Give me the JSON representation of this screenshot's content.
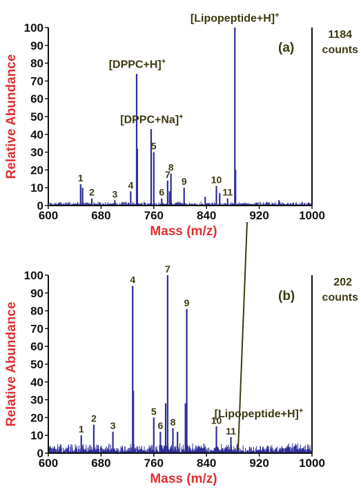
{
  "chart_data": [
    {
      "type": "line",
      "panel_label": "(a)",
      "counts_value": "1184",
      "counts_unit": "counts",
      "xlabel": "Mass (m/z)",
      "ylabel": "Relative Abundance",
      "xlim": [
        600,
        1000
      ],
      "ylim": [
        0,
        100
      ],
      "xticks": [
        600,
        680,
        760,
        840,
        920,
        1000
      ],
      "yticks": [
        0,
        10,
        20,
        30,
        40,
        50,
        60,
        70,
        80,
        90,
        100
      ],
      "peaks": [
        {
          "x": 649,
          "y": 12,
          "label": "1"
        },
        {
          "x": 652,
          "y": 10,
          "label": ""
        },
        {
          "x": 666,
          "y": 4,
          "label": "2"
        },
        {
          "x": 701,
          "y": 3,
          "label": "3"
        },
        {
          "x": 725,
          "y": 8,
          "label": "4"
        },
        {
          "x": 734,
          "y": 74,
          "label": ""
        },
        {
          "x": 735,
          "y": 32,
          "label": ""
        },
        {
          "x": 756,
          "y": 43,
          "label": ""
        },
        {
          "x": 760,
          "y": 30,
          "label": "5"
        },
        {
          "x": 772,
          "y": 4,
          "label": "6"
        },
        {
          "x": 781,
          "y": 14,
          "label": "7"
        },
        {
          "x": 784,
          "y": 8,
          "label": ""
        },
        {
          "x": 786,
          "y": 18,
          "label": "8"
        },
        {
          "x": 806,
          "y": 10,
          "label": "9"
        },
        {
          "x": 838,
          "y": 5,
          "label": ""
        },
        {
          "x": 855,
          "y": 11,
          "label": "10"
        },
        {
          "x": 860,
          "y": 7,
          "label": ""
        },
        {
          "x": 872,
          "y": 4,
          "label": "11"
        },
        {
          "x": 883,
          "y": 100,
          "label": ""
        },
        {
          "x": 884,
          "y": 20,
          "label": ""
        },
        {
          "x": 950,
          "y": 3,
          "label": ""
        }
      ],
      "annotations": [
        {
          "base": "[DPPC+H]",
          "sup": "+",
          "x": 735,
          "y": 75
        },
        {
          "base": "[DPPC+Na]",
          "sup": "+",
          "x": 757,
          "y": 44
        },
        {
          "base": "[Lipopeptide+H]",
          "sup": "+",
          "x": 883,
          "y": 101
        }
      ],
      "noise_level": 2.5,
      "line_color": "#2e2e9a"
    },
    {
      "type": "line",
      "panel_label": "(b)",
      "counts_value": "202",
      "counts_unit": "counts",
      "xlabel": "Mass (m/z)",
      "ylabel": "Relative Abundance",
      "xlim": [
        600,
        1000
      ],
      "ylim": [
        0,
        100
      ],
      "xticks": [
        600,
        680,
        760,
        840,
        920,
        1000
      ],
      "yticks": [
        0,
        10,
        20,
        30,
        40,
        50,
        60,
        70,
        80,
        90,
        100
      ],
      "peaks": [
        {
          "x": 650,
          "y": 10,
          "label": "1"
        },
        {
          "x": 669,
          "y": 16,
          "label": "2"
        },
        {
          "x": 698,
          "y": 12,
          "label": "3"
        },
        {
          "x": 728,
          "y": 94,
          "label": "4"
        },
        {
          "x": 729,
          "y": 35,
          "label": ""
        },
        {
          "x": 760,
          "y": 20,
          "label": "5"
        },
        {
          "x": 770,
          "y": 12,
          "label": "6"
        },
        {
          "x": 778,
          "y": 28,
          "label": ""
        },
        {
          "x": 781,
          "y": 100,
          "label": "7"
        },
        {
          "x": 789,
          "y": 14,
          "label": "8"
        },
        {
          "x": 796,
          "y": 12,
          "label": ""
        },
        {
          "x": 808,
          "y": 28,
          "label": ""
        },
        {
          "x": 810,
          "y": 81,
          "label": "9"
        },
        {
          "x": 855,
          "y": 15,
          "label": "10"
        },
        {
          "x": 877,
          "y": 9,
          "label": "11"
        }
      ],
      "annotations": [
        {
          "base": "[Lipopeptide+H]",
          "sup": "+",
          "x": 877,
          "y": 10
        }
      ],
      "noise_level": 6,
      "line_color": "#2e2e9a"
    }
  ]
}
